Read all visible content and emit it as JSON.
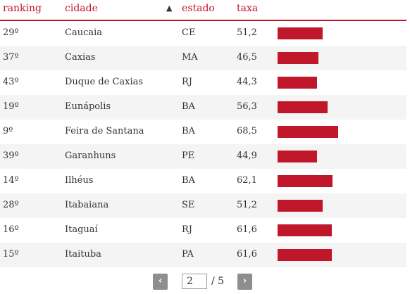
{
  "header": {
    "ranking": "ranking",
    "cidade": "cidade",
    "estado": "estado",
    "taxa": "taxa",
    "sort_arrow": "▲"
  },
  "colors": {
    "accent": "#c0182a",
    "bar": "#c0182a",
    "pager_button": "#8e8e8e"
  },
  "bar_max": 100,
  "rows": [
    {
      "ranking": "29º",
      "cidade": "Caucaia",
      "estado": "CE",
      "taxa": "51,2",
      "value": 51.2
    },
    {
      "ranking": "37º",
      "cidade": "Caxias",
      "estado": "MA",
      "taxa": "46,5",
      "value": 46.5
    },
    {
      "ranking": "43º",
      "cidade": "Duque de Caxias",
      "estado": "RJ",
      "taxa": "44,3",
      "value": 44.3
    },
    {
      "ranking": "19º",
      "cidade": "Eunápolis",
      "estado": "BA",
      "taxa": "56,3",
      "value": 56.3
    },
    {
      "ranking": "9º",
      "cidade": "Feira de Santana",
      "estado": "BA",
      "taxa": "68,5",
      "value": 68.5
    },
    {
      "ranking": "39º",
      "cidade": "Garanhuns",
      "estado": "PE",
      "taxa": "44,9",
      "value": 44.9
    },
    {
      "ranking": "14º",
      "cidade": "Ilhéus",
      "estado": "BA",
      "taxa": "62,1",
      "value": 62.1
    },
    {
      "ranking": "28º",
      "cidade": "Itabaiana",
      "estado": "SE",
      "taxa": "51,2",
      "value": 51.2
    },
    {
      "ranking": "16º",
      "cidade": "Itaguaí",
      "estado": "RJ",
      "taxa": "61,6",
      "value": 61.6
    },
    {
      "ranking": "15º",
      "cidade": "Itaituba",
      "estado": "PA",
      "taxa": "61,6",
      "value": 61.6
    }
  ],
  "pager": {
    "prev_label": "‹",
    "next_label": "›",
    "current_page": "2",
    "total_label": "/ 5"
  }
}
